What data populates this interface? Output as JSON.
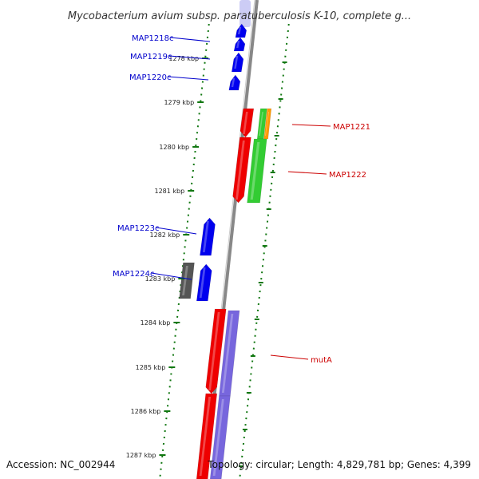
{
  "header": {
    "title": "Mycobacterium avium subsp. paratuberculosis K-10, complete g..."
  },
  "footer": {
    "accession": "Accession: NC_002944",
    "topology": "Topology: circular; Length: 4,829,781 bp; Genes: 4,399"
  },
  "colors": {
    "reverse_gene": "#0000ee",
    "forward_gene": "#ee0000",
    "rna_gene": "#33cc33",
    "repeat_feature": "#ff9900",
    "feature_gray": "#555555",
    "feature_purple": "#7766dd",
    "backbone": "#888888",
    "tick": "#117711",
    "label_blue": "#0000cc",
    "label_red": "#cc0000"
  },
  "scale": {
    "unit": "kbp",
    "ticks": [
      "1278 kbp",
      "1279 kbp",
      "1280 kbp",
      "1281 kbp",
      "1282 kbp",
      "1283 kbp",
      "1284 kbp",
      "1285 kbp",
      "1286 kbp",
      "1287 kbp"
    ]
  },
  "gene_labels": {
    "left": [
      "MAP1218c",
      "MAP1219c",
      "MAP1220c",
      "MAP1223c",
      "MAP1224c"
    ],
    "right": [
      "MAP1221",
      "MAP1222",
      "mutA"
    ]
  }
}
